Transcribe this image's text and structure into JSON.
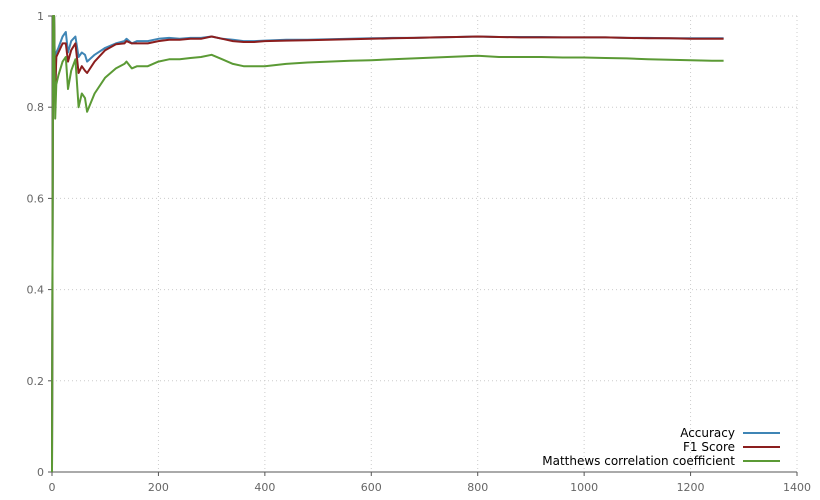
{
  "chart_data": {
    "type": "line",
    "title": "",
    "xlabel": "",
    "ylabel": "",
    "xlim": [
      0,
      1400
    ],
    "ylim": [
      0,
      1
    ],
    "x_ticks": [
      0,
      200,
      400,
      600,
      800,
      1000,
      1200,
      1400
    ],
    "y_ticks": [
      0,
      0.2,
      0.4,
      0.6,
      0.8,
      1
    ],
    "x_tick_labels": [
      "0",
      "200",
      "400",
      "600",
      "800",
      "1000",
      "1200",
      "1400"
    ],
    "y_tick_labels": [
      "0",
      "0.2",
      "0.4",
      "0.6",
      "0.8",
      "1"
    ],
    "grid": true,
    "legend_position": "bottom-right",
    "series": [
      {
        "name": "Accuracy",
        "color": "#3f85b5",
        "x": [
          0,
          2,
          4,
          6,
          8,
          12,
          20,
          26,
          30,
          36,
          44,
          50,
          56,
          62,
          66,
          80,
          100,
          120,
          136,
          140,
          150,
          160,
          180,
          200,
          220,
          240,
          260,
          280,
          300,
          320,
          340,
          360,
          380,
          400,
          440,
          480,
          520,
          560,
          600,
          640,
          680,
          720,
          760,
          800,
          840,
          880,
          920,
          960,
          1000,
          1040,
          1080,
          1120,
          1160,
          1200,
          1240,
          1262
        ],
        "y": [
          0,
          1.0,
          1.0,
          0.83,
          0.92,
          0.93,
          0.955,
          0.965,
          0.92,
          0.945,
          0.955,
          0.91,
          0.92,
          0.915,
          0.9,
          0.915,
          0.93,
          0.94,
          0.945,
          0.95,
          0.94,
          0.945,
          0.945,
          0.95,
          0.952,
          0.95,
          0.952,
          0.952,
          0.955,
          0.95,
          0.948,
          0.945,
          0.945,
          0.946,
          0.948,
          0.948,
          0.949,
          0.95,
          0.951,
          0.952,
          0.952,
          0.953,
          0.954,
          0.955,
          0.954,
          0.954,
          0.954,
          0.953,
          0.953,
          0.953,
          0.952,
          0.952,
          0.951,
          0.951,
          0.951,
          0.951
        ]
      },
      {
        "name": "F1 Score",
        "color": "#8b1e1e",
        "x": [
          0,
          2,
          4,
          6,
          8,
          12,
          20,
          26,
          30,
          36,
          44,
          50,
          56,
          62,
          66,
          80,
          100,
          120,
          136,
          140,
          150,
          160,
          180,
          200,
          220,
          240,
          260,
          280,
          300,
          320,
          340,
          360,
          380,
          400,
          440,
          480,
          520,
          560,
          600,
          640,
          680,
          720,
          760,
          800,
          840,
          880,
          920,
          960,
          1000,
          1040,
          1080,
          1120,
          1160,
          1200,
          1240,
          1262
        ],
        "y": [
          0,
          1.0,
          1.0,
          0.83,
          0.91,
          0.92,
          0.94,
          0.94,
          0.9,
          0.925,
          0.94,
          0.875,
          0.89,
          0.88,
          0.875,
          0.9,
          0.925,
          0.938,
          0.94,
          0.945,
          0.94,
          0.94,
          0.94,
          0.945,
          0.948,
          0.948,
          0.95,
          0.95,
          0.955,
          0.95,
          0.945,
          0.943,
          0.943,
          0.945,
          0.946,
          0.947,
          0.948,
          0.949,
          0.95,
          0.951,
          0.952,
          0.953,
          0.954,
          0.955,
          0.954,
          0.953,
          0.953,
          0.953,
          0.953,
          0.953,
          0.952,
          0.951,
          0.951,
          0.95,
          0.95,
          0.95
        ]
      },
      {
        "name": "Matthews correlation coefficient",
        "color": "#5b9a35",
        "x": [
          0,
          2,
          4,
          6,
          8,
          12,
          20,
          26,
          30,
          36,
          44,
          50,
          56,
          62,
          66,
          80,
          100,
          120,
          136,
          140,
          150,
          160,
          180,
          200,
          220,
          240,
          260,
          280,
          300,
          320,
          340,
          360,
          380,
          400,
          440,
          480,
          520,
          560,
          600,
          640,
          680,
          720,
          760,
          800,
          840,
          880,
          920,
          960,
          1000,
          1040,
          1080,
          1120,
          1160,
          1200,
          1240,
          1262
        ],
        "y": [
          0,
          1.0,
          1.0,
          0.775,
          0.85,
          0.87,
          0.9,
          0.91,
          0.84,
          0.88,
          0.905,
          0.8,
          0.83,
          0.82,
          0.79,
          0.83,
          0.865,
          0.885,
          0.895,
          0.9,
          0.885,
          0.89,
          0.89,
          0.9,
          0.905,
          0.905,
          0.908,
          0.91,
          0.915,
          0.905,
          0.895,
          0.89,
          0.89,
          0.89,
          0.895,
          0.898,
          0.9,
          0.902,
          0.903,
          0.905,
          0.907,
          0.909,
          0.911,
          0.913,
          0.91,
          0.91,
          0.91,
          0.909,
          0.909,
          0.908,
          0.907,
          0.905,
          0.904,
          0.903,
          0.902,
          0.902
        ]
      }
    ]
  }
}
